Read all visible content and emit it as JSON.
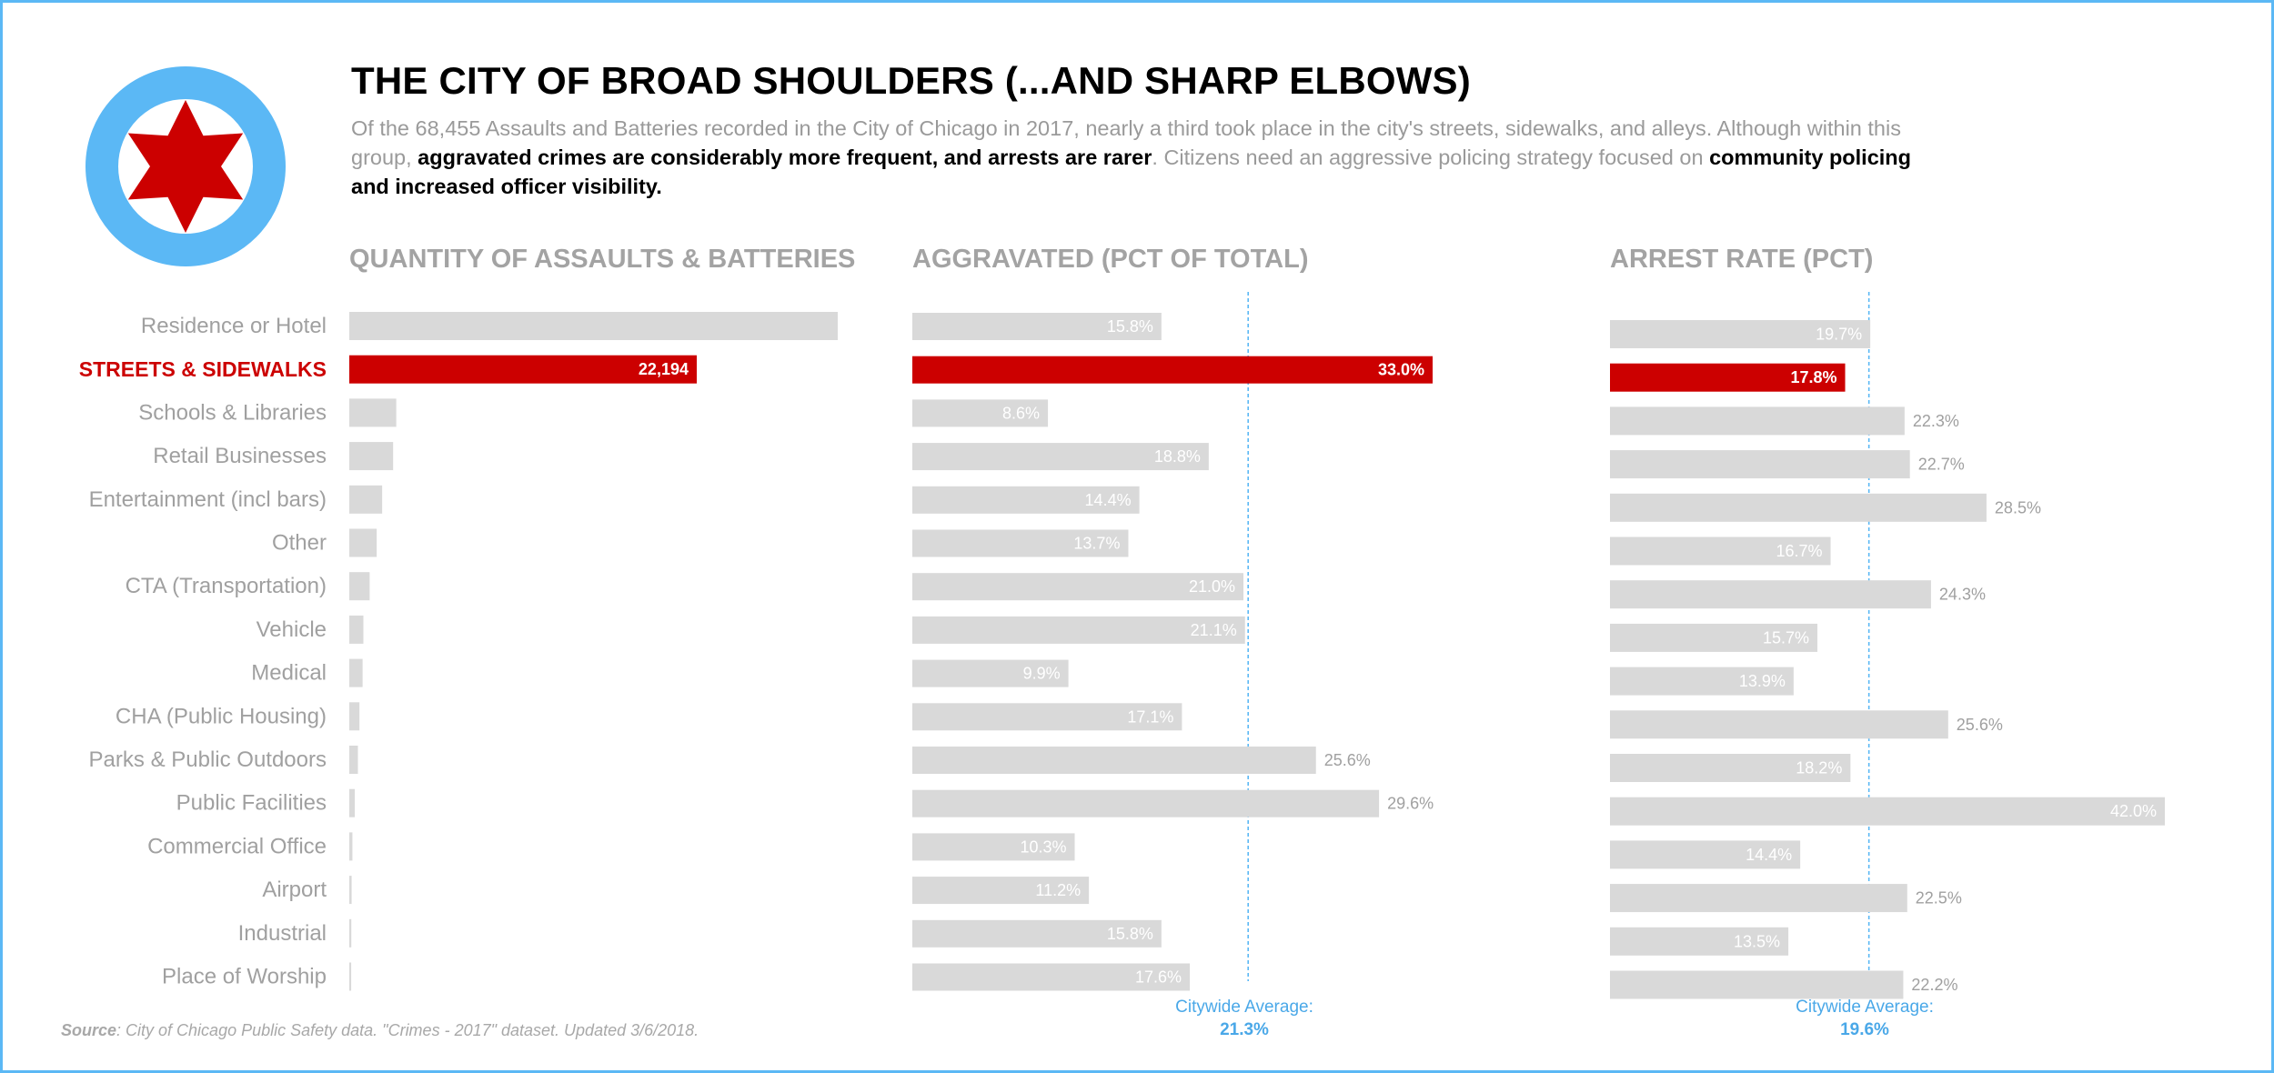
{
  "title": "THE CITY OF BROAD SHOULDERS (...AND SHARP ELBOWS)",
  "subtitle": {
    "part1": "Of the 68,455 Assaults and Batteries recorded in the City of Chicago in 2017, nearly a third took place in the city's streets, sidewalks, and alleys. Although within this group, ",
    "bold1": "aggravated crimes are considerably more frequent, and arrests are rarer",
    "part2": ". Citizens need an aggressive policing strategy focused on ",
    "bold2": "community policing and increased officer visibility."
  },
  "logo": {
    "icon": "chicago-star-icon",
    "ring_color": "#5bb8f5",
    "star_color": "#cc0000"
  },
  "source": {
    "label": "Source",
    "text": ": City of Chicago Public Safety data. \"Crimes  - 2017\" dataset. Updated 3/6/2018."
  },
  "colors": {
    "highlight": "#cc0000",
    "bar": "#d9d9d9",
    "label_muted": "#a0a0a0",
    "average": "#5bb8f5",
    "border": "#5bb8f5"
  },
  "chart_data": [
    {
      "type": "bar",
      "orientation": "horizontal",
      "title": "QUANTITY OF ASSAULTS & BATTERIES",
      "categories": [
        "Residence or Hotel",
        "STREETS & SIDEWALKS",
        "Schools & Libraries",
        "Retail Businesses",
        "Entertainment (incl bars)",
        "Other",
        "CTA (Transportation)",
        "Vehicle",
        "Medical",
        "CHA (Public Housing)",
        "Parks & Public Outdoors",
        "Public Facilities",
        "Commercial Office",
        "Airport",
        "Industrial",
        "Place of Worship"
      ],
      "values": [
        31200,
        22194,
        3000,
        2800,
        2100,
        1750,
        1300,
        900,
        850,
        650,
        550,
        350,
        200,
        150,
        130,
        120
      ],
      "value_labels": [
        "",
        "22,194",
        "",
        "",
        "",
        "",
        "",
        "",
        "",
        "",
        "",
        "",
        "",
        "",
        "",
        ""
      ],
      "highlight_index": 1,
      "xlim": [
        0,
        31200
      ]
    },
    {
      "type": "bar",
      "orientation": "horizontal",
      "title": "AGGRAVATED (PCT OF TOTAL)",
      "categories": [
        "Residence or Hotel",
        "STREETS & SIDEWALKS",
        "Schools & Libraries",
        "Retail Businesses",
        "Entertainment (incl bars)",
        "Other",
        "CTA (Transportation)",
        "Vehicle",
        "Medical",
        "CHA (Public Housing)",
        "Parks & Public Outdoors",
        "Public Facilities",
        "Commercial Office",
        "Airport",
        "Industrial",
        "Place of Worship"
      ],
      "values": [
        15.8,
        33.0,
        8.6,
        18.8,
        14.4,
        13.7,
        21.0,
        21.1,
        9.9,
        17.1,
        25.6,
        29.6,
        10.3,
        11.2,
        15.8,
        17.6
      ],
      "value_labels": [
        "15.8%",
        "33.0%",
        "8.6%",
        "18.8%",
        "14.4%",
        "13.7%",
        "21.0%",
        "21.1%",
        "9.9%",
        "17.1%",
        "25.6%",
        "29.6%",
        "10.3%",
        "11.2%",
        "15.8%",
        "17.6%"
      ],
      "highlight_index": 1,
      "reference_line": {
        "label": "Citywide Average:",
        "value": 21.3,
        "value_label": "21.3%"
      },
      "xlim": [
        0,
        33.0
      ]
    },
    {
      "type": "bar",
      "orientation": "horizontal",
      "title": "ARREST RATE (PCT)",
      "categories": [
        "Residence or Hotel",
        "STREETS & SIDEWALKS",
        "Schools & Libraries",
        "Retail Businesses",
        "Entertainment (incl bars)",
        "Other",
        "CTA (Transportation)",
        "Vehicle",
        "Medical",
        "CHA (Public Housing)",
        "Parks & Public Outdoors",
        "Public Facilities",
        "Commercial Office",
        "Airport",
        "Industrial",
        "Place of Worship"
      ],
      "values": [
        19.7,
        17.8,
        22.3,
        22.7,
        28.5,
        16.7,
        24.3,
        15.7,
        13.9,
        25.6,
        18.2,
        42.0,
        14.4,
        22.5,
        13.5,
        22.2
      ],
      "value_labels": [
        "19.7%",
        "17.8%",
        "22.3%",
        "22.7%",
        "28.5%",
        "16.7%",
        "24.3%",
        "15.7%",
        "13.9%",
        "25.6%",
        "18.2%",
        "42.0%",
        "14.4%",
        "22.5%",
        "13.5%",
        "22.2%"
      ],
      "highlight_index": 1,
      "reference_line": {
        "label": "Citywide Average:",
        "value": 19.6,
        "value_label": "19.6%"
      },
      "xlim": [
        0,
        42.0
      ]
    }
  ]
}
